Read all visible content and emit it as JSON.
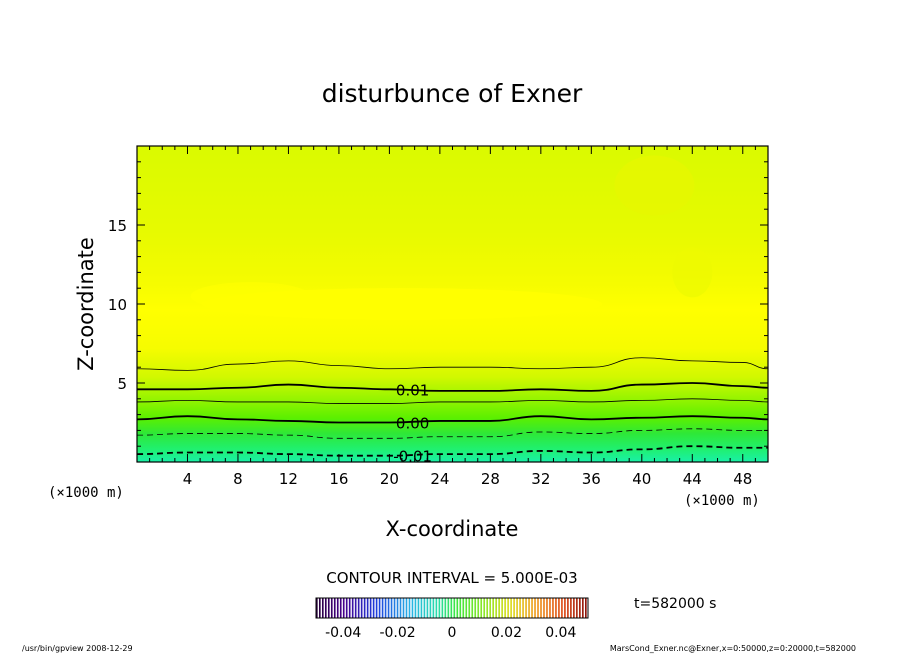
{
  "chart_data": {
    "type": "contour",
    "title": "disturbunce of Exner",
    "xlabel": "X-coordinate",
    "ylabel": "Z-coordinate",
    "x_unit_label": "(×1000 m)",
    "y_unit_label": "(×1000 m)",
    "xlim": [
      0,
      50
    ],
    "ylim": [
      0,
      20
    ],
    "xticks": [
      4,
      8,
      12,
      16,
      20,
      24,
      28,
      32,
      36,
      40,
      44,
      48
    ],
    "yticks": [
      5,
      10,
      15
    ],
    "contour_interval_text": "CONTOUR INTERVAL = 5.000E-03",
    "time_label": "t=582000 s",
    "contours": [
      {
        "level": "-0.01",
        "label": "-0.01",
        "style": "dashed-bold",
        "x": [
          0,
          4,
          8,
          12,
          16,
          20,
          24,
          28,
          32,
          36,
          40,
          44,
          48,
          50
        ],
        "z": [
          0.5,
          0.6,
          0.6,
          0.5,
          0.4,
          0.4,
          0.5,
          0.5,
          0.7,
          0.6,
          0.8,
          1.0,
          0.9,
          0.9
        ]
      },
      {
        "level": "-0.005",
        "label": "",
        "style": "dashed",
        "x": [
          0,
          4,
          8,
          12,
          16,
          20,
          24,
          28,
          32,
          36,
          40,
          44,
          48,
          50
        ],
        "z": [
          1.7,
          1.8,
          1.8,
          1.7,
          1.5,
          1.5,
          1.6,
          1.6,
          1.9,
          1.8,
          2.0,
          2.1,
          2.0,
          2.0
        ]
      },
      {
        "level": "0.00",
        "label": "0.00",
        "style": "bold",
        "x": [
          0,
          4,
          8,
          12,
          16,
          20,
          24,
          28,
          32,
          36,
          40,
          44,
          48,
          50
        ],
        "z": [
          2.7,
          2.9,
          2.7,
          2.6,
          2.5,
          2.5,
          2.6,
          2.6,
          2.9,
          2.7,
          2.8,
          2.9,
          2.8,
          2.7
        ]
      },
      {
        "level": "0.005",
        "label": "",
        "style": "solid",
        "x": [
          0,
          4,
          8,
          12,
          16,
          20,
          24,
          28,
          32,
          36,
          40,
          44,
          48,
          50
        ],
        "z": [
          3.8,
          3.9,
          3.8,
          3.8,
          3.7,
          3.7,
          3.8,
          3.8,
          3.9,
          3.8,
          3.9,
          4.0,
          3.9,
          3.8
        ]
      },
      {
        "level": "0.01",
        "label": "0.01",
        "style": "bold",
        "x": [
          0,
          4,
          8,
          12,
          16,
          20,
          24,
          28,
          32,
          36,
          40,
          44,
          48,
          50
        ],
        "z": [
          4.6,
          4.6,
          4.7,
          4.9,
          4.7,
          4.6,
          4.5,
          4.5,
          4.6,
          4.5,
          4.9,
          5.0,
          4.8,
          4.7
        ]
      },
      {
        "level": "0.015",
        "label": "",
        "style": "solid",
        "x": [
          0,
          4,
          8,
          12,
          16,
          20,
          24,
          28,
          32,
          36,
          40,
          44,
          48,
          50
        ],
        "z": [
          5.9,
          5.8,
          6.2,
          6.4,
          6.1,
          5.9,
          6.0,
          6.0,
          5.9,
          6.0,
          6.6,
          6.4,
          6.3,
          5.9
        ]
      }
    ],
    "colorbar": {
      "ticks": [
        "-0.04",
        "-0.02",
        "0",
        "0.02",
        "0.04"
      ],
      "tick_values": [
        -0.04,
        -0.02,
        0,
        0.02,
        0.04
      ],
      "range": [
        -0.05,
        0.05
      ],
      "colormap": "rainbow (dark purple → blue → cyan → green → yellow → orange → red)"
    }
  },
  "footer": {
    "left": "/usr/bin/gpview   2008-12-29",
    "right": "MarsCond_Exner.nc@Exner,x=0:50000,z=0:20000,t=582000"
  }
}
